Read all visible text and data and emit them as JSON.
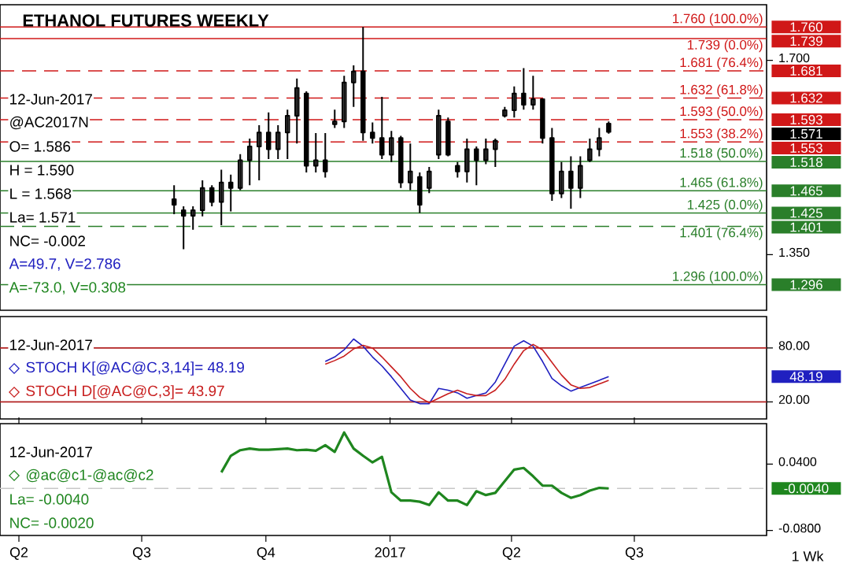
{
  "chart_data": [
    {
      "type": "candlestick",
      "title": "ETHANOL FUTURES WEEKLY",
      "color": "#000000",
      "x": [
        "2016-07-25",
        "2016-08-01",
        "2016-08-08",
        "2016-08-15",
        "2016-08-22",
        "2016-08-29",
        "2016-09-05",
        "2016-09-12",
        "2016-09-19",
        "2016-09-26",
        "2016-10-03",
        "2016-10-10",
        "2016-10-17",
        "2016-10-24",
        "2016-10-31",
        "2016-11-07",
        "2016-11-14",
        "2016-11-21",
        "2016-11-28",
        "2016-12-05",
        "2016-12-12",
        "2016-12-19",
        "2016-12-26",
        "2017-01-02",
        "2017-01-09",
        "2017-01-16",
        "2017-01-23",
        "2017-01-30",
        "2017-02-06",
        "2017-02-13",
        "2017-02-20",
        "2017-02-27",
        "2017-03-06",
        "2017-03-13",
        "2017-03-20",
        "2017-03-27",
        "2017-04-03",
        "2017-04-10",
        "2017-04-17",
        "2017-04-24",
        "2017-05-01",
        "2017-05-08",
        "2017-05-15",
        "2017-05-22",
        "2017-05-29",
        "2017-06-05",
        "2017-06-12"
      ],
      "ohlc": [
        [
          1.45,
          1.475,
          1.423,
          1.44
        ],
        [
          1.43,
          1.437,
          1.36,
          1.42
        ],
        [
          1.42,
          1.437,
          1.395,
          1.43
        ],
        [
          1.43,
          1.484,
          1.419,
          1.47
        ],
        [
          1.47,
          1.475,
          1.437,
          1.445
        ],
        [
          1.445,
          1.503,
          1.403,
          1.48
        ],
        [
          1.48,
          1.494,
          1.428,
          1.47
        ],
        [
          1.47,
          1.531,
          1.466,
          1.52
        ],
        [
          1.52,
          1.559,
          1.475,
          1.545
        ],
        [
          1.545,
          1.583,
          1.484,
          1.57
        ],
        [
          1.57,
          1.606,
          1.522,
          1.54
        ],
        [
          1.54,
          1.583,
          1.522,
          1.57
        ],
        [
          1.57,
          1.611,
          1.522,
          1.6
        ],
        [
          1.6,
          1.667,
          1.55,
          1.65
        ],
        [
          1.64,
          1.644,
          1.498,
          1.51
        ],
        [
          1.51,
          1.569,
          1.498,
          1.52
        ],
        [
          1.52,
          1.569,
          1.489,
          1.5
        ],
        [
          1.585,
          1.611,
          1.578,
          1.59
        ],
        [
          1.59,
          1.672,
          1.578,
          1.66
        ],
        [
          1.66,
          1.691,
          1.616,
          1.68
        ],
        [
          1.68,
          1.76,
          1.555,
          1.57
        ],
        [
          1.57,
          1.588,
          1.55,
          1.56
        ],
        [
          1.56,
          1.634,
          1.522,
          1.53
        ],
        [
          1.53,
          1.573,
          1.517,
          1.56
        ],
        [
          1.56,
          1.564,
          1.47,
          1.48
        ],
        [
          1.48,
          1.55,
          1.466,
          1.5
        ],
        [
          1.49,
          1.498,
          1.425,
          1.44
        ],
        [
          1.47,
          1.508,
          1.461,
          1.5
        ],
        [
          1.53,
          1.611,
          1.522,
          1.6
        ],
        [
          1.59,
          1.597,
          1.527,
          1.53
        ],
        [
          1.51,
          1.517,
          1.489,
          1.5
        ],
        [
          1.5,
          1.559,
          1.48,
          1.54
        ],
        [
          1.54,
          1.545,
          1.475,
          1.52
        ],
        [
          1.52,
          1.559,
          1.513,
          1.54
        ],
        [
          1.54,
          1.559,
          1.508,
          1.555
        ],
        [
          1.6,
          1.616,
          1.597,
          1.61
        ],
        [
          1.61,
          1.653,
          1.597,
          1.64
        ],
        [
          1.64,
          1.686,
          1.611,
          1.62
        ],
        [
          1.62,
          1.672,
          1.611,
          1.63
        ],
        [
          1.63,
          1.63,
          1.55,
          1.56
        ],
        [
          1.56,
          1.578,
          1.447,
          1.46
        ],
        [
          1.46,
          1.517,
          1.452,
          1.5
        ],
        [
          1.5,
          1.527,
          1.433,
          1.47
        ],
        [
          1.47,
          1.527,
          1.452,
          1.51
        ],
        [
          1.52,
          1.559,
          1.517,
          1.54
        ],
        [
          1.54,
          1.578,
          1.527,
          1.56
        ],
        [
          1.586,
          1.59,
          1.568,
          1.571
        ]
      ],
      "xlim": [
        "2016-03-18",
        "2017-10-07"
      ],
      "ylim": [
        1.25,
        1.8
      ],
      "yticks": [
        {
          "value": 1.35,
          "label": "1.350"
        },
        {
          "value": 1.7,
          "label": "1.700"
        }
      ],
      "tick_labels": "y",
      "ref_lines": [
        {
          "axis": "y",
          "value": 1.76,
          "label": "1.760 (100.0%)",
          "color": "#d01818",
          "line_style": "solid"
        },
        {
          "axis": "y",
          "value": 1.739,
          "label": "1.739 (0.0%)",
          "color": "#d01818",
          "line_style": "solid"
        },
        {
          "axis": "y",
          "value": 1.681,
          "label": "1.681 (76.4%)",
          "color": "#d01818",
          "line_style": "dashed"
        },
        {
          "axis": "y",
          "value": 1.632,
          "label": "1.632 (61.8%)",
          "color": "#d01818",
          "line_style": "dashed"
        },
        {
          "axis": "y",
          "value": 1.593,
          "label": "1.593 (50.0%)",
          "color": "#d01818",
          "line_style": "dashed"
        },
        {
          "axis": "y",
          "value": 1.553,
          "label": "1.553 (38.2%)",
          "color": "#d01818",
          "line_style": "dashed"
        },
        {
          "axis": "y",
          "value": 1.518,
          "label": "1.518 (50.0%)",
          "color": "#2a7f2a",
          "line_style": "solid"
        },
        {
          "axis": "y",
          "value": 1.465,
          "label": "1.465 (61.8%)",
          "color": "#2a7f2a",
          "line_style": "solid"
        },
        {
          "axis": "y",
          "value": 1.425,
          "label": "1.425 (0.0%)",
          "color": "#2a7f2a",
          "line_style": "solid"
        },
        {
          "axis": "y",
          "value": 1.401,
          "label": "1.401 (76.4%)",
          "color": "#2a7f2a",
          "line_style": "dashed"
        },
        {
          "axis": "y",
          "value": 1.296,
          "label": "1.296 (100.0%)",
          "color": "#2a7f2a",
          "line_style": "solid"
        }
      ],
      "annotations": [
        "12-Jun-2017",
        "@AC2017N",
        "O= 1.586",
        "H = 1.590",
        "L = 1.568",
        "La= 1.571",
        "NC= -0.002",
        "A=49.7, V=2.786",
        "A=-73.0, V=0.308",
        "1.760",
        "1.739",
        "1.681",
        "1.632",
        "1.593",
        "1.571",
        "1.553",
        "1.518",
        "1.465",
        "1.425",
        "1.401",
        "1.296"
      ]
    },
    {
      "type": "line",
      "x": [
        "2016-11-14",
        "2016-11-21",
        "2016-11-28",
        "2016-12-05",
        "2016-12-12",
        "2016-12-19",
        "2016-12-26",
        "2017-01-02",
        "2017-01-09",
        "2017-01-16",
        "2017-01-23",
        "2017-01-30",
        "2017-02-06",
        "2017-02-13",
        "2017-02-20",
        "2017-02-27",
        "2017-03-06",
        "2017-03-13",
        "2017-03-20",
        "2017-03-27",
        "2017-04-03",
        "2017-04-10",
        "2017-04-17",
        "2017-04-24",
        "2017-05-01",
        "2017-05-08",
        "2017-05-15",
        "2017-05-22",
        "2017-05-29",
        "2017-06-05",
        "2017-06-12"
      ],
      "series": [
        {
          "name": "STOCH K[@AC@C,3,14]= 48.19",
          "color": "#2020c0",
          "values": [
            65,
            70,
            78,
            90,
            82,
            70,
            60,
            48,
            35,
            22,
            18,
            18,
            35,
            33,
            30,
            24,
            27,
            30,
            42,
            62,
            82,
            88,
            82,
            65,
            46,
            38,
            32,
            36,
            40,
            44,
            48.19
          ]
        },
        {
          "name": "STOCH D[@AC@C,3]= 43.97",
          "color": "#c81e1e",
          "values": [
            62,
            66,
            71,
            79,
            83,
            80,
            70,
            59,
            48,
            35,
            25,
            19,
            24,
            29,
            33,
            29,
            27,
            27,
            33,
            45,
            62,
            77,
            84,
            78,
            64,
            50,
            39,
            35,
            36,
            40,
            43.97
          ]
        }
      ],
      "xlim": [
        "2016-03-18",
        "2017-10-07"
      ],
      "ylim": [
        1,
        115
      ],
      "yticks": [
        {
          "value": 80,
          "label": "80.00"
        },
        {
          "value": 20,
          "label": "20.00"
        }
      ],
      "tick_labels": "y",
      "legend": "left",
      "ref_lines": [
        {
          "axis": "y",
          "value": 80,
          "color": "#b22222",
          "line_style": "solid"
        },
        {
          "axis": "y",
          "value": 20,
          "color": "#b22222",
          "line_style": "solid"
        }
      ],
      "annotations": [
        "12-Jun-2017",
        "48.19"
      ]
    },
    {
      "type": "line",
      "xlabel": "1 Wk",
      "x": [
        "2016-08-29",
        "2016-09-05",
        "2016-09-12",
        "2016-09-19",
        "2016-09-26",
        "2016-10-03",
        "2016-10-10",
        "2016-10-17",
        "2016-10-24",
        "2016-10-31",
        "2016-11-07",
        "2016-11-14",
        "2016-11-21",
        "2016-11-28",
        "2016-12-05",
        "2016-12-12",
        "2016-12-19",
        "2016-12-26",
        "2017-01-02",
        "2017-01-09",
        "2017-01-16",
        "2017-01-23",
        "2017-01-30",
        "2017-02-06",
        "2017-02-13",
        "2017-02-20",
        "2017-02-27",
        "2017-03-06",
        "2017-03-13",
        "2017-03-20",
        "2017-03-27",
        "2017-04-03",
        "2017-04-10",
        "2017-04-17",
        "2017-04-24",
        "2017-05-01",
        "2017-05-08",
        "2017-05-15",
        "2017-05-22",
        "2017-05-29",
        "2017-06-05",
        "2017-06-12"
      ],
      "series": [
        {
          "name": "@ac@c1-@ac@c2",
          "color": "#1f861f",
          "values": [
            0.025,
            0.055,
            0.065,
            0.068,
            0.066,
            0.066,
            0.067,
            0.068,
            0.065,
            0.066,
            0.064,
            0.074,
            0.062,
            0.097,
            0.068,
            0.055,
            0.043,
            0.053,
            -0.011,
            -0.026,
            -0.026,
            -0.028,
            -0.034,
            -0.011,
            -0.026,
            -0.026,
            -0.034,
            -0.009,
            -0.016,
            -0.012,
            0.009,
            0.03,
            0.033,
            0.018,
            0.001,
            0.001,
            -0.012,
            -0.021,
            -0.016,
            -0.008,
            -0.003,
            -0.004
          ]
        }
      ],
      "xlim": [
        "2016-03-18",
        "2017-10-07"
      ],
      "ylim": [
        -0.089,
        0.113
      ],
      "xticks": [
        {
          "value": "2016-04-01",
          "label": "Q2"
        },
        {
          "value": "2016-07-01",
          "label": "Q3"
        },
        {
          "value": "2016-10-01",
          "label": "Q4"
        },
        {
          "value": "2017-01-01",
          "label": "2017"
        },
        {
          "value": "2017-04-01",
          "label": "Q2"
        },
        {
          "value": "2017-07-01",
          "label": "Q3"
        }
      ],
      "yticks": [
        {
          "value": 0.04,
          "label": "0.0400"
        },
        {
          "value": -0.08,
          "label": "-0.0800"
        }
      ],
      "legend": "left",
      "ref_lines": [
        {
          "axis": "y",
          "value": -0.004,
          "color": "#c8c8c8",
          "line_style": "dashed"
        }
      ],
      "annotations": [
        "12-Jun-2017",
        "La= -0.0040",
        "NC= -0.0020",
        "-0.0040"
      ]
    }
  ]
}
